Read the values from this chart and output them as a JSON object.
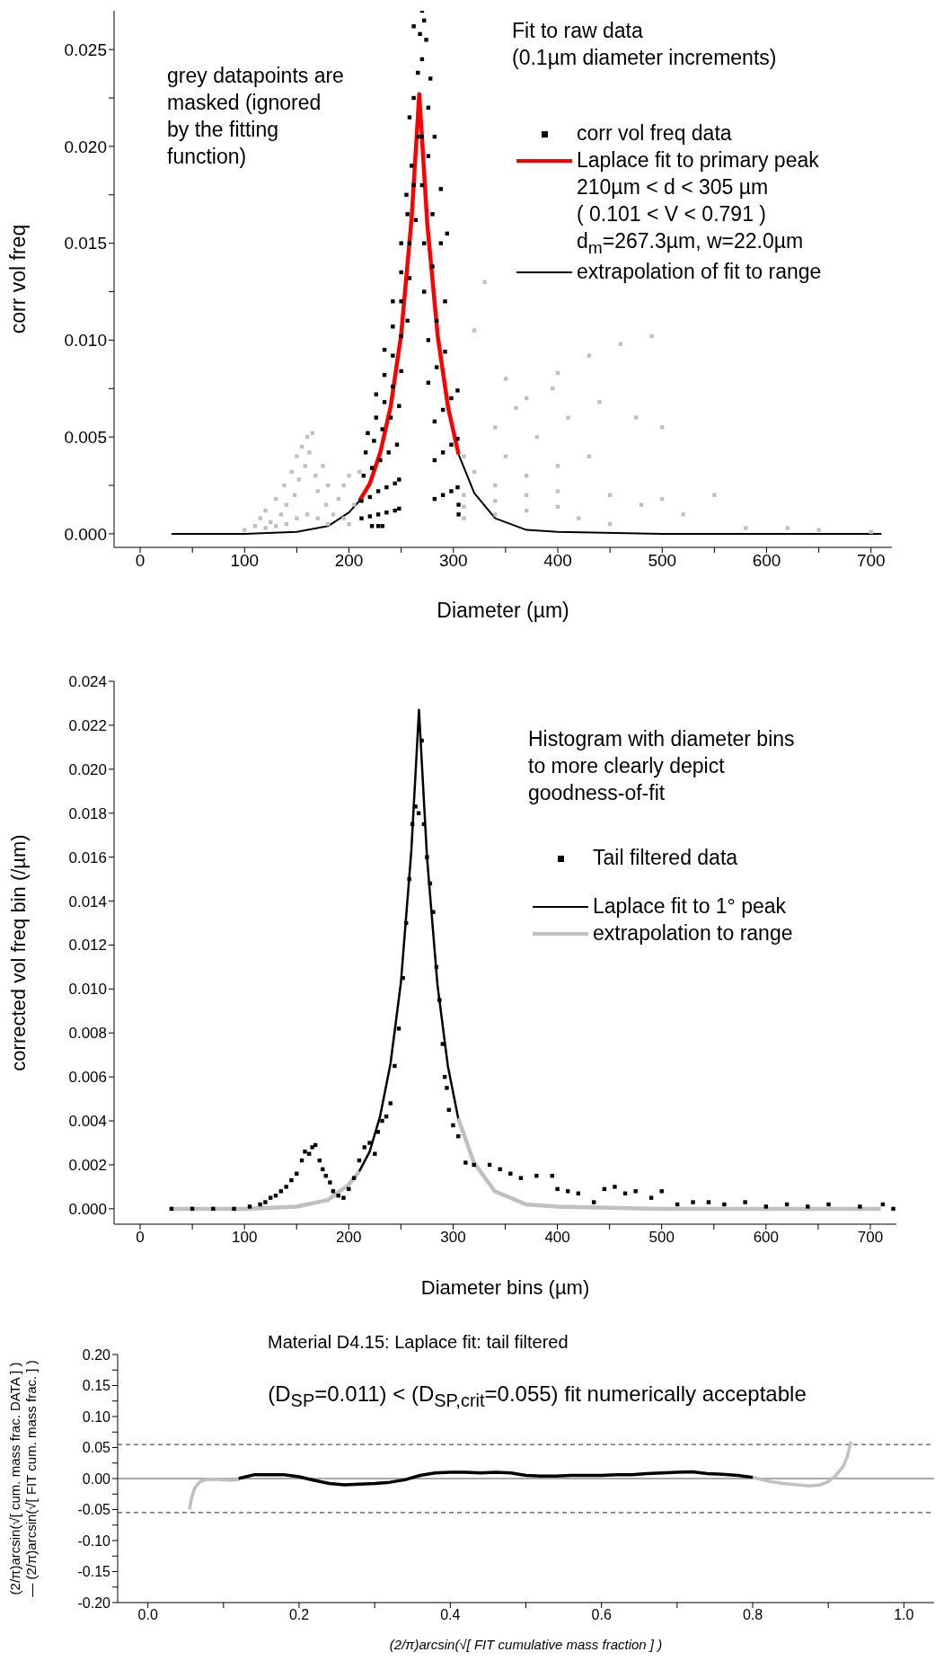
{
  "chart_data": [
    {
      "type": "scatter",
      "xlabel": "Diameter (µm)",
      "ylabel": "corr vol freq",
      "xlim": [
        -25,
        720
      ],
      "ylim": [
        -0.0007,
        0.027
      ],
      "xticks": [
        0,
        {
          "value": 50,
          "label": null
        },
        100,
        {
          "value": 150,
          "label": null
        },
        200,
        {
          "value": 250,
          "label": null
        },
        300,
        {
          "value": 350,
          "label": null
        },
        400,
        {
          "value": 450,
          "label": null
        },
        500,
        {
          "value": 550,
          "label": null
        },
        600,
        {
          "value": 650,
          "label": null
        },
        700
      ],
      "yticks": [
        {
          "value": 0,
          "label": "0.000"
        },
        {
          "value": 0.0025,
          "label": null
        },
        0.005,
        {
          "value": 0.0075,
          "label": null
        },
        {
          "value": 0.01,
          "label": "0.010"
        },
        {
          "value": 0.0125,
          "label": null
        },
        0.015,
        {
          "value": 0.0175,
          "label": null
        },
        {
          "value": 0.02,
          "label": "0.020"
        },
        {
          "value": 0.0225,
          "label": null
        },
        0.025
      ],
      "legend": "top right",
      "annotations": [
        "Fit to raw data\n(0.1µm diameter increments)",
        "grey datapoints are\nmasked (ignored\nby the fitting\nfunction)"
      ],
      "series": [
        {
          "color": "#c0c0c0",
          "marker": "square",
          "x": [
            100,
            110,
            115,
            120,
            125,
            130,
            135,
            138,
            140,
            145,
            148,
            150,
            152,
            155,
            158,
            160,
            162,
            165,
            168,
            170,
            175,
            178,
            180,
            185,
            190,
            195,
            200,
            205,
            200,
            210,
            195,
            140,
            160,
            150,
            170,
            180,
            120,
            130,
            310,
            340,
            370,
            400,
            430,
            460,
            490,
            320,
            350,
            380,
            410,
            440,
            310,
            340,
            370,
            400,
            430,
            310,
            340,
            370,
            400,
            310,
            340,
            370,
            400,
            330,
            320,
            350,
            360,
            395,
            475,
            500,
            450,
            480,
            500,
            520,
            550,
            580,
            620,
            650,
            700,
            450,
            420
          ],
          "values": [
            0.0002,
            0.0004,
            0.0008,
            0.0012,
            0.0006,
            0.0018,
            0.001,
            0.0025,
            0.0015,
            0.0032,
            0.002,
            0.004,
            0.0028,
            0.0045,
            0.0035,
            0.005,
            0.0042,
            0.0052,
            0.003,
            0.0022,
            0.0035,
            0.0015,
            0.0025,
            0.001,
            0.0018,
            0.0008,
            0.0005,
            0.0015,
            0.003,
            0.0032,
            0.0025,
            0.0005,
            0.001,
            0.0008,
            0.0008,
            0.0005,
            0.0003,
            0.0004,
            0.004,
            0.0055,
            0.007,
            0.0083,
            0.0092,
            0.0098,
            0.0102,
            0.0032,
            0.004,
            0.005,
            0.006,
            0.0068,
            0.002,
            0.0025,
            0.003,
            0.0035,
            0.004,
            0.0014,
            0.0017,
            0.002,
            0.0022,
            0.0008,
            0.001,
            0.0012,
            0.0014,
            0.013,
            0.0105,
            0.008,
            0.0065,
            0.0075,
            0.006,
            0.0055,
            0.002,
            0.0015,
            0.0018,
            0.001,
            0.002,
            0.0003,
            0.0003,
            0.0002,
            0.0001,
            0.0005,
            0.0008
          ]
        },
        {
          "name": "corr vol freq data",
          "color": "#000000",
          "marker": "square",
          "x": [
            212,
            220,
            228,
            236,
            244,
            248,
            212,
            220,
            228,
            236,
            244,
            248,
            214,
            222,
            230,
            238,
            246,
            216,
            224,
            232,
            240,
            248,
            218,
            226,
            234,
            242,
            250,
            226,
            234,
            242,
            250,
            256,
            234,
            242,
            250,
            258,
            242,
            250,
            258,
            264,
            250,
            256,
            262,
            255,
            260,
            266,
            258,
            262,
            266,
            270,
            268,
            272,
            262,
            274,
            270,
            282,
            290,
            298,
            304,
            282,
            290,
            298,
            304,
            282,
            290,
            298,
            304,
            276,
            284,
            292,
            276,
            284,
            292,
            272,
            280,
            288,
            294,
            272,
            280,
            288,
            270,
            276,
            282,
            270,
            276,
            278,
            305,
            305,
            222,
            228,
            232
          ],
          "values": [
            0.0008,
            0.0009,
            0.001,
            0.0011,
            0.0012,
            0.0013,
            0.0017,
            0.0019,
            0.0022,
            0.0024,
            0.0026,
            0.0028,
            0.003,
            0.0034,
            0.0038,
            0.0042,
            0.0046,
            0.0042,
            0.0048,
            0.0054,
            0.006,
            0.0066,
            0.0052,
            0.006,
            0.0068,
            0.0076,
            0.0084,
            0.0072,
            0.0082,
            0.0092,
            0.0102,
            0.011,
            0.0095,
            0.0107,
            0.012,
            0.0132,
            0.012,
            0.0135,
            0.015,
            0.0162,
            0.015,
            0.0165,
            0.018,
            0.0175,
            0.019,
            0.0205,
            0.0215,
            0.0225,
            0.0238,
            0.0245,
            0.0258,
            0.0265,
            0.0262,
            0.0255,
            0.027,
            0.0038,
            0.0042,
            0.0046,
            0.0049,
            0.0018,
            0.002,
            0.0022,
            0.0024,
            0.0058,
            0.0064,
            0.007,
            0.0074,
            0.0078,
            0.0086,
            0.0094,
            0.01,
            0.011,
            0.012,
            0.0125,
            0.0138,
            0.015,
            0.0155,
            0.015,
            0.0165,
            0.0178,
            0.018,
            0.0195,
            0.0205,
            0.0205,
            0.022,
            0.0235,
            0.0015,
            0.001,
            0.0004,
            0.0004,
            0.0004
          ]
        },
        {
          "type": "line",
          "name": "Laplace fit to primary peak\n210µm < d < 305 µm\n( 0.101 < V < 0.791 )\nd$_{m}$=267.3µm, w=22.0µm",
          "color": "#ff0000",
          "x": [
            210,
            220,
            230,
            240,
            250,
            260,
            267.3,
            275,
            285,
            295,
            305
          ],
          "values": [
            0.0017,
            0.0026,
            0.0042,
            0.0066,
            0.0103,
            0.0163,
            0.0227,
            0.016,
            0.0102,
            0.0065,
            0.0041
          ]
        },
        {
          "type": "line",
          "name": "extrapolation of fit to range",
          "color": "#000000",
          "x": [
            30,
            100,
            150,
            180,
            200,
            210,
            257,
            305,
            320,
            340,
            370,
            400,
            500,
            600,
            710
          ],
          "values": [
            0,
            0,
            0.0001,
            0.0004,
            0.0011,
            0.0017,
            null,
            0.0041,
            0.0021,
            0.0008,
            0.0002,
            0.0001,
            0,
            0,
            0
          ]
        }
      ]
    },
    {
      "type": "scatter",
      "xlabel": "Diameter bins (µm)",
      "ylabel": "corrected vol freq bin (/µm)",
      "xlim": [
        -25,
        725
      ],
      "ylim": [
        -0.0007,
        0.024
      ],
      "xticks": [
        0,
        {
          "value": 50,
          "label": null
        },
        100,
        {
          "value": 150,
          "label": null
        },
        200,
        {
          "value": 250,
          "label": null
        },
        300,
        {
          "value": 350,
          "label": null
        },
        400,
        {
          "value": 450,
          "label": null
        },
        500,
        {
          "value": 550,
          "label": null
        },
        600,
        {
          "value": 650,
          "label": null
        },
        700
      ],
      "yticks": [
        {
          "value": 0,
          "label": "0.000"
        },
        0.002,
        0.004,
        0.006,
        0.008,
        {
          "value": 0.01,
          "label": "0.010"
        },
        0.012,
        0.014,
        0.016,
        0.018,
        {
          "value": 0.02,
          "label": "0.020"
        },
        0.022,
        0.024
      ],
      "legend": "right",
      "annotations": [
        "Histogram with diameter bins\nto more clearly depict\ngoodness-of-fit"
      ],
      "series": [
        {
          "name": "Tail filtered data",
          "color": "#000000",
          "marker": "square",
          "x": [
            30,
            50,
            70,
            90,
            105,
            115,
            120,
            125,
            130,
            135,
            140,
            145,
            150,
            155,
            158,
            162,
            165,
            168,
            172,
            175,
            178,
            182,
            185,
            190,
            195,
            200,
            205,
            210,
            215,
            220,
            225,
            228,
            232,
            236,
            240,
            244,
            248,
            252,
            255,
            258,
            261,
            264,
            267,
            270,
            272,
            275,
            278,
            281,
            284,
            287,
            290,
            292,
            294,
            296,
            300,
            305,
            312,
            320,
            335,
            345,
            355,
            365,
            380,
            395,
            400,
            410,
            420,
            435,
            445,
            455,
            465,
            475,
            490,
            500,
            515,
            530,
            545,
            560,
            580,
            600,
            620,
            640,
            660,
            690,
            712,
            722
          ],
          "values": [
            0,
            0,
            0,
            0,
            0.0001,
            0.0002,
            0.0003,
            0.0005,
            0.0006,
            0.0008,
            0.001,
            0.0013,
            0.0016,
            0.0022,
            0.0026,
            0.0025,
            0.0028,
            0.0029,
            0.0022,
            0.0018,
            0.0015,
            0.0012,
            0.0008,
            0.0006,
            0.0005,
            0.0009,
            0.0014,
            0.0022,
            0.0028,
            0.003,
            0.0025,
            0.0035,
            0.004,
            0.0042,
            0.0048,
            0.0065,
            0.0082,
            0.0105,
            0.013,
            0.015,
            0.0175,
            0.0183,
            0.018,
            0.0213,
            0.0175,
            0.016,
            0.0148,
            0.0135,
            0.011,
            0.0095,
            0.0075,
            0.006,
            0.0055,
            0.0045,
            0.0038,
            0.0033,
            0.0021,
            0.002,
            0.002,
            0.0018,
            0.0016,
            0.0014,
            0.0015,
            0.0015,
            0.0009,
            0.0008,
            0.0007,
            0.0003,
            0.0009,
            0.001,
            0.0007,
            0.0008,
            0.0005,
            0.0008,
            0.0002,
            0.0003,
            0.0003,
            0.0002,
            0.0003,
            0.0001,
            0.0002,
            0.0001,
            0.0002,
            0.0001,
            0.0002,
            0
          ]
        },
        {
          "type": "line",
          "name": "Laplace fit to 1° peak",
          "color": "#000000",
          "x": [
            210,
            220,
            230,
            240,
            250,
            260,
            267.3,
            275,
            285,
            295,
            305
          ],
          "values": [
            0.0017,
            0.0026,
            0.0042,
            0.0066,
            0.0103,
            0.0163,
            0.0227,
            0.016,
            0.0102,
            0.0065,
            0.0041
          ]
        },
        {
          "type": "line",
          "name": "extrapolation to range",
          "color": "#c0c0c0",
          "x": [
            30,
            100,
            150,
            180,
            200,
            210,
            257,
            305,
            320,
            340,
            370,
            400,
            500,
            600,
            710
          ],
          "values": [
            0,
            0,
            0.0001,
            0.0004,
            0.0011,
            0.0017,
            null,
            0.0041,
            0.0021,
            0.0008,
            0.0002,
            0.0001,
            0,
            0,
            0
          ]
        }
      ]
    },
    {
      "type": "line",
      "title": "Material D4.15: Laplace fit: tail filtered",
      "xlabel": "(2/π)arcsin(√[ FIT cumulative mass fraction ] )",
      "ylabel": "(2/π)arcsin(√[ cum. mass frac. DATA ] )\n— (2/π)arcsin(√[ FIT cum. mass frac. ] )",
      "xlim": [
        -0.04,
        1.04
      ],
      "ylim": [
        -0.2,
        0.2
      ],
      "xticks": [
        {
          "value": 0,
          "label": "0.0"
        },
        {
          "value": 0.1,
          "label": null
        },
        0.2,
        {
          "value": 0.3,
          "label": null
        },
        0.4,
        {
          "value": 0.5,
          "label": null
        },
        0.6,
        {
          "value": 0.7,
          "label": null
        },
        0.8,
        {
          "value": 0.9,
          "label": null
        },
        {
          "value": 1,
          "label": "1.0"
        }
      ],
      "yticks": [
        {
          "value": -0.2,
          "label": "-0.20"
        },
        {
          "value": -0.175,
          "label": null
        },
        -0.15,
        {
          "value": -0.125,
          "label": null
        },
        {
          "value": -0.1,
          "label": "-0.10"
        },
        {
          "value": -0.075,
          "label": null
        },
        -0.05,
        {
          "value": -0.025,
          "label": null
        },
        {
          "value": 0,
          "label": "0.00"
        },
        {
          "value": 0.025,
          "label": null
        },
        0.05,
        {
          "value": 0.075,
          "label": null
        },
        {
          "value": 0.1,
          "label": "0.10"
        },
        {
          "value": 0.125,
          "label": null
        },
        0.15,
        {
          "value": 0.175,
          "label": null
        },
        {
          "value": 0.2,
          "label": "0.20"
        }
      ],
      "annotations": [
        "(D$_{SP}$=0.011) < (D$_{SP,crit}$=0.055) fit numerically acceptable"
      ],
      "ref_lines": [
        {
          "axis": "y",
          "value": 0.055,
          "color": "#555555",
          "line_style": "dashed"
        },
        {
          "axis": "y",
          "value": -0.055,
          "color": "#555555",
          "line_style": "dashed"
        },
        {
          "axis": "y",
          "value": 0,
          "color": "#555555",
          "line_style": "solid"
        }
      ],
      "series": [
        {
          "color": "#c0c0c0",
          "x": [
            0.055,
            0.058,
            0.062,
            0.068,
            0.075,
            0.085,
            0.1,
            0.11,
            0.12,
            0.5,
            0.8,
            0.82,
            0.84,
            0.86,
            0.875,
            0.89,
            0.9,
            0.91,
            0.92,
            0.925,
            0.93
          ],
          "values": [
            -0.05,
            -0.03,
            -0.015,
            -0.006,
            -0.002,
            -0.001,
            -0.002,
            -0.003,
            -0.002,
            null,
            0.002,
            -0.004,
            -0.008,
            -0.01,
            -0.012,
            -0.01,
            -0.005,
            0.005,
            0.02,
            0.035,
            0.06
          ]
        },
        {
          "color": "#000000",
          "x": [
            0.12,
            0.14,
            0.16,
            0.18,
            0.2,
            0.22,
            0.24,
            0.26,
            0.28,
            0.3,
            0.32,
            0.34,
            0.36,
            0.38,
            0.4,
            0.42,
            0.44,
            0.46,
            0.48,
            0.5,
            0.52,
            0.54,
            0.56,
            0.58,
            0.6,
            0.62,
            0.64,
            0.66,
            0.68,
            0.7,
            0.72,
            0.74,
            0.76,
            0.78,
            0.8
          ],
          "values": [
            0,
            0.006,
            0.006,
            0.006,
            0.003,
            -0.003,
            -0.008,
            -0.01,
            -0.009,
            -0.008,
            -0.006,
            -0.002,
            0.005,
            0.009,
            0.01,
            0.01,
            0.009,
            0.01,
            0.009,
            0.005,
            0.004,
            0.004,
            0.005,
            0.005,
            0.005,
            0.006,
            0.006,
            0.008,
            0.009,
            0.01,
            0.011,
            0.008,
            0.007,
            0.005,
            0.002
          ]
        }
      ]
    }
  ]
}
